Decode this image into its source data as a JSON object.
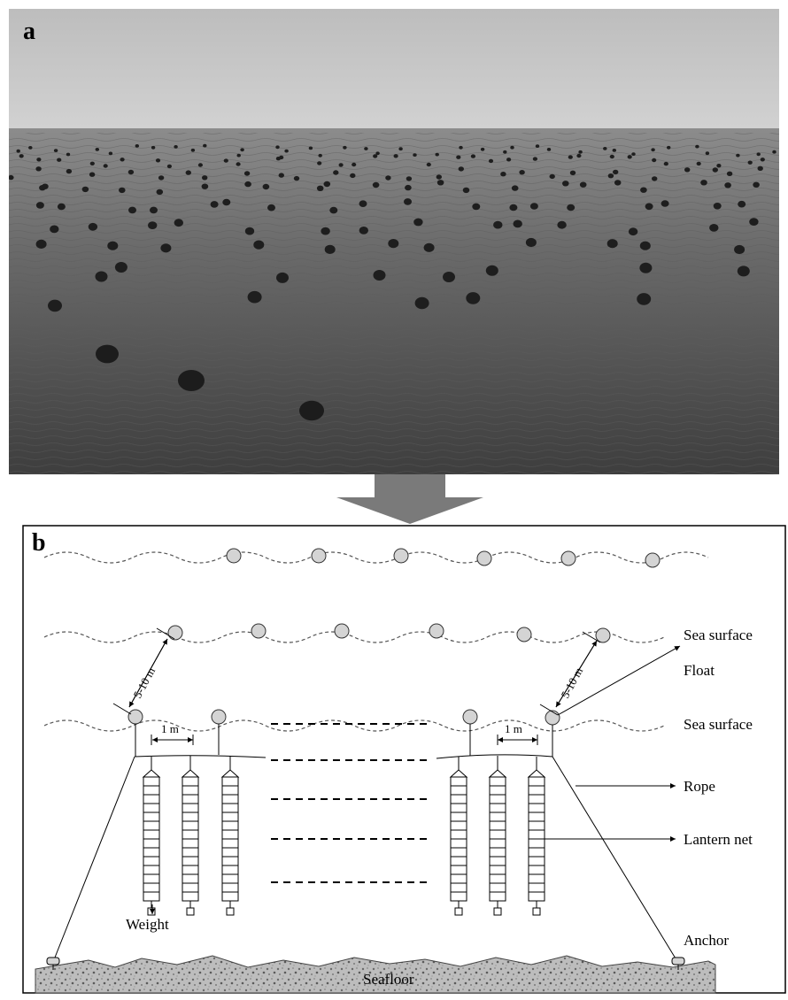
{
  "panel_a": {
    "label": "a"
  },
  "panel_b": {
    "label": "b",
    "labels": {
      "sea_surface_1": "Sea surface",
      "sea_surface_2": "Sea surface",
      "float": "Float",
      "rope": "Rope",
      "lantern_net": "Lantern net",
      "weight": "Weight",
      "anchor": "Anchor",
      "seafloor": "Seafloor",
      "spacing_left": "5-10 m",
      "spacing_right": "5-10 m",
      "gap_left": "1 m",
      "gap_right": "1 m"
    }
  },
  "colors": {
    "sky": "#c9c9c9",
    "sea_dark": "#4a4a4a",
    "buoy": "#1e1e1e",
    "arrow": "#7a7a7a",
    "float_fill": "#d4d4d4"
  }
}
